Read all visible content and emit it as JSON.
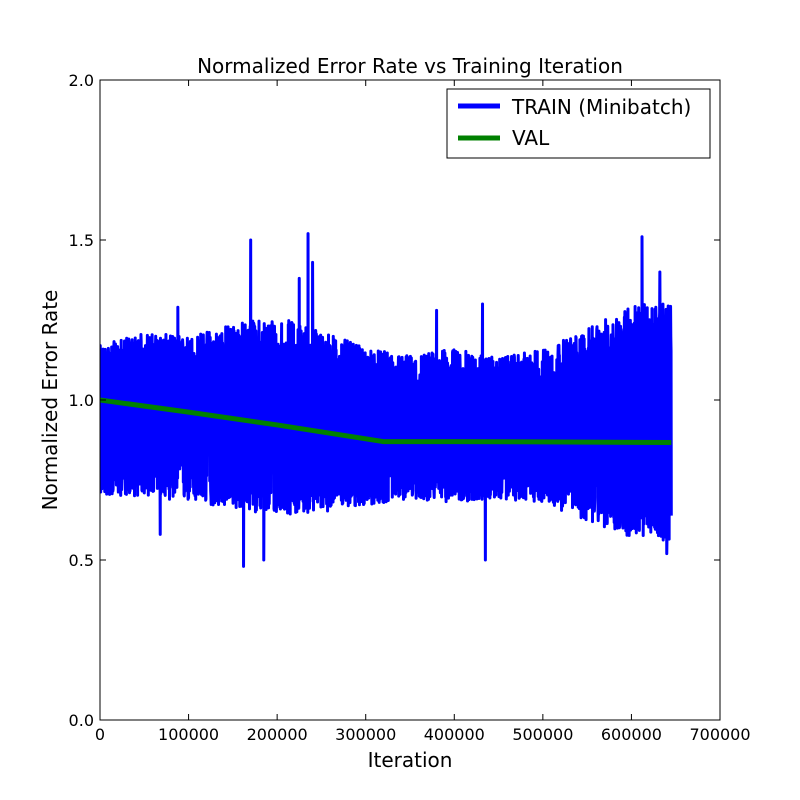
{
  "chart_data": {
    "type": "line",
    "title": "Normalized Error Rate vs Training Iteration",
    "xlabel": "Iteration",
    "ylabel": "Normalized Error Rate",
    "xlim": [
      0,
      700000
    ],
    "ylim": [
      0.0,
      2.0
    ],
    "x_ticks": [
      0,
      100000,
      200000,
      300000,
      400000,
      500000,
      600000,
      700000
    ],
    "x_tick_labels": [
      "0",
      "100000",
      "200000",
      "300000",
      "400000",
      "500000",
      "600000",
      "700000"
    ],
    "y_ticks": [
      0.0,
      0.5,
      1.0,
      1.5,
      2.0
    ],
    "y_tick_labels": [
      "0.0",
      "0.5",
      "1.0",
      "1.5",
      "2.0"
    ],
    "grid": false,
    "legend_position": "top-right",
    "series": [
      {
        "name": "TRAIN (Minibatch)",
        "color": "#0000ff",
        "style": "noisy minibatch line",
        "x_range": [
          0,
          645000
        ],
        "envelope": [
          {
            "x": 0,
            "low": 0.7,
            "high": 1.17
          },
          {
            "x": 50000,
            "low": 0.7,
            "high": 1.21
          },
          {
            "x": 100000,
            "low": 0.68,
            "high": 1.2
          },
          {
            "x": 150000,
            "low": 0.66,
            "high": 1.24
          },
          {
            "x": 200000,
            "low": 0.64,
            "high": 1.26
          },
          {
            "x": 250000,
            "low": 0.65,
            "high": 1.22
          },
          {
            "x": 300000,
            "low": 0.67,
            "high": 1.16
          },
          {
            "x": 350000,
            "low": 0.69,
            "high": 1.14
          },
          {
            "x": 400000,
            "low": 0.68,
            "high": 1.16
          },
          {
            "x": 450000,
            "low": 0.69,
            "high": 1.13
          },
          {
            "x": 500000,
            "low": 0.68,
            "high": 1.16
          },
          {
            "x": 550000,
            "low": 0.62,
            "high": 1.22
          },
          {
            "x": 600000,
            "low": 0.57,
            "high": 1.3
          },
          {
            "x": 645000,
            "low": 0.56,
            "high": 1.3
          }
        ],
        "spikes": [
          {
            "x": 170000,
            "y": 1.5
          },
          {
            "x": 235000,
            "y": 1.52
          },
          {
            "x": 240000,
            "y": 1.43
          },
          {
            "x": 225000,
            "y": 1.38
          },
          {
            "x": 88000,
            "y": 1.29
          },
          {
            "x": 380000,
            "y": 1.28
          },
          {
            "x": 432000,
            "y": 1.3
          },
          {
            "x": 612000,
            "y": 1.51
          },
          {
            "x": 632000,
            "y": 1.4
          },
          {
            "x": 162000,
            "y": 0.48
          },
          {
            "x": 185000,
            "y": 0.5
          },
          {
            "x": 435000,
            "y": 0.5
          },
          {
            "x": 640000,
            "y": 0.52
          },
          {
            "x": 68000,
            "y": 0.58
          }
        ]
      },
      {
        "name": "VAL",
        "color": "#008000",
        "x": [
          0,
          100000,
          200000,
          320000,
          400000,
          500000,
          645000
        ],
        "y": [
          1.0,
          0.962,
          0.922,
          0.87,
          0.87,
          0.869,
          0.867
        ]
      }
    ]
  }
}
